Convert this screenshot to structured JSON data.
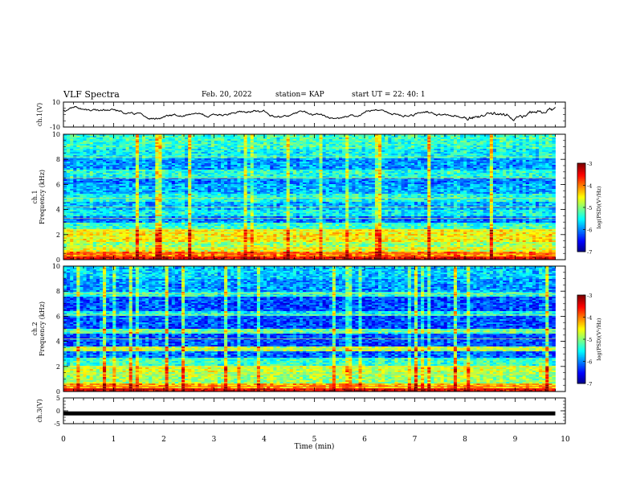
{
  "header": {
    "title": "VLF Spectra",
    "date": "Feb. 20, 2022",
    "station": "station= KAP",
    "start": "start  UT =   22: 40: 1"
  },
  "chart_data": [
    {
      "type": "line",
      "name": "ch1-waveform",
      "ylabel": "ch.1(V)",
      "ylim": [
        -10,
        10
      ],
      "yticks": [
        "10",
        "-10"
      ],
      "xlim": [
        0,
        10
      ],
      "x_end": 9.8,
      "color": "#000000"
    },
    {
      "type": "heatmap",
      "name": "ch1-spectrogram",
      "ylabel": "ch.1\nFrequency  (kHz)",
      "ylim": [
        0,
        10
      ],
      "yticks": [
        "0",
        "2",
        "4",
        "6",
        "8",
        "10"
      ],
      "xlim": [
        0,
        9.8
      ],
      "colorbar": {
        "label": "log(PSD)(V²/Hz)",
        "range": [
          -7,
          -3
        ],
        "ticks": [
          "-3",
          "-4",
          "-5",
          "-6",
          "-7"
        ]
      }
    },
    {
      "type": "heatmap",
      "name": "ch2-spectrogram",
      "ylabel": "ch.2\nFrequency  (kHz)",
      "ylim": [
        0,
        10
      ],
      "yticks": [
        "0",
        "2",
        "4",
        "6",
        "8",
        "10"
      ],
      "xlim": [
        0,
        9.8
      ],
      "colorbar": {
        "label": "log(PSD)(V²/Hz)",
        "range": [
          -7,
          -3
        ],
        "ticks": [
          "-3",
          "-4",
          "-5",
          "-6",
          "-7"
        ]
      }
    },
    {
      "type": "line",
      "name": "ch3-signal",
      "ylabel": "ch.3(V)",
      "ylim": [
        -5,
        5
      ],
      "yticks": [
        "5",
        "0",
        "-5"
      ],
      "xlim": [
        0,
        10
      ],
      "x_end": 9.8,
      "level": -1.0,
      "color": "#000000"
    }
  ],
  "xaxis": {
    "label": "Time  (min)",
    "ticks": [
      "0",
      "1",
      "2",
      "3",
      "4",
      "5",
      "6",
      "7",
      "8",
      "9",
      "10"
    ]
  }
}
